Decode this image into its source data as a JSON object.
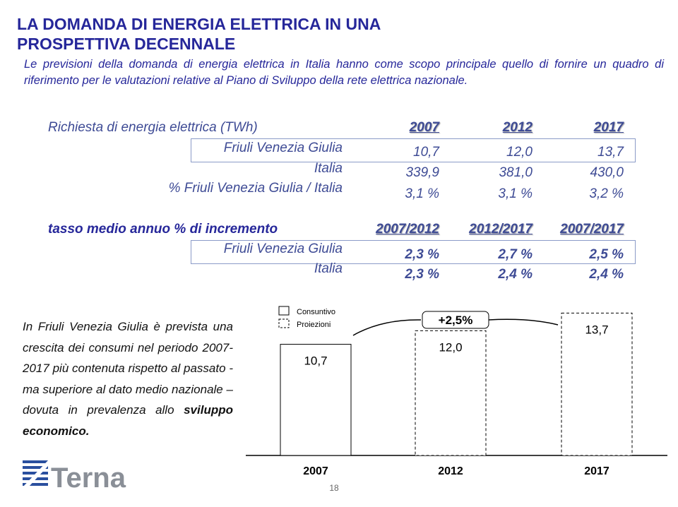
{
  "header": {
    "title": "LA DOMANDA DI ENERGIA ELETTRICA IN UNA PROSPETTIVA DECENNALE",
    "intro": "Le previsioni della domanda di energia elettrica in Italia hanno come scopo principale quello di fornire un quadro di riferimento per le valutazioni relative al Piano di Sviluppo della rete elettrica nazionale."
  },
  "table1": {
    "title": "Richiesta di energia elettrica (TWh)",
    "columns": [
      "2007",
      "2012",
      "2017"
    ],
    "rows": [
      {
        "label": "Friuli Venezia Giulia",
        "cells": [
          "10,7",
          "12,0",
          "13,7"
        ]
      },
      {
        "label": "Italia",
        "cells": [
          "339,9",
          "381,0",
          "430,0"
        ]
      },
      {
        "label": "% Friuli Venezia Giulia / Italia",
        "cells": [
          "3,1 %",
          "3,1 %",
          "3,2 %"
        ]
      }
    ]
  },
  "table2": {
    "title": "tasso medio annuo % di incremento",
    "columns": [
      "2007/2012",
      "2012/2017",
      "2007/2017"
    ],
    "rows": [
      {
        "label": "Friuli Venezia Giulia",
        "cells": [
          "2,3 %",
          "2,7 %",
          "2,5 %"
        ]
      },
      {
        "label": "Italia",
        "cells": [
          "2,3 %",
          "2,4 %",
          "2,4 %"
        ]
      }
    ]
  },
  "note": [
    "In Friuli Venezia Giulia è prevista una crescita dei consumi nel periodo 2007-2017 più contenuta rispetto al passato - ma superiore al dato medio nazionale – dovuta in prevalenza allo",
    "sviluppo economico."
  ],
  "chart_data": {
    "type": "bar",
    "categories": [
      "2007",
      "2012",
      "2017"
    ],
    "values": [
      10.7,
      12.0,
      13.7
    ],
    "value_labels": [
      "10,7",
      "12,0",
      "13,7"
    ],
    "color": "#ffffff",
    "ylim": [
      0,
      14
    ],
    "legend": [
      "Consuntivo",
      "Proiezioni"
    ],
    "annotation": "+2,5%"
  },
  "footer": {
    "logo": "Terna",
    "page": "18"
  }
}
